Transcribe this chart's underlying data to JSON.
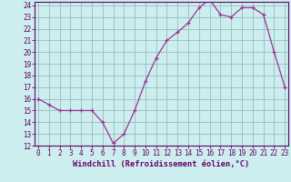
{
  "x": [
    0,
    1,
    2,
    3,
    4,
    5,
    6,
    7,
    8,
    9,
    10,
    11,
    12,
    13,
    14,
    15,
    16,
    17,
    18,
    19,
    20,
    21,
    22,
    23
  ],
  "y": [
    16,
    15.5,
    15,
    15,
    15,
    15,
    14,
    12.2,
    13,
    15,
    17.5,
    19.5,
    21,
    21.7,
    22.5,
    23.8,
    24.5,
    23.2,
    23,
    23.8,
    23.8,
    23.2,
    20,
    17
  ],
  "line_color": "#993399",
  "marker": "+",
  "bg_color": "#cceeee",
  "grid_color": "#99bbbb",
  "ylim": [
    12,
    24
  ],
  "xlim": [
    0,
    23
  ],
  "yticks": [
    12,
    13,
    14,
    15,
    16,
    17,
    18,
    19,
    20,
    21,
    22,
    23,
    24
  ],
  "xticks": [
    0,
    1,
    2,
    3,
    4,
    5,
    6,
    7,
    8,
    9,
    10,
    11,
    12,
    13,
    14,
    15,
    16,
    17,
    18,
    19,
    20,
    21,
    22,
    23
  ],
  "xtick_labels": [
    "0",
    "1",
    "2",
    "3",
    "4",
    "5",
    "6",
    "7",
    "8",
    "9",
    "10",
    "11",
    "12",
    "13",
    "14",
    "15",
    "16",
    "17",
    "18",
    "19",
    "20",
    "21",
    "22",
    "23"
  ],
  "xlabel": "Windchill (Refroidissement éolien,°C)",
  "axis_color": "#660066",
  "tick_color": "#660066",
  "label_color": "#660066",
  "tick_fontsize": 5.5,
  "xlabel_fontsize": 6.2
}
